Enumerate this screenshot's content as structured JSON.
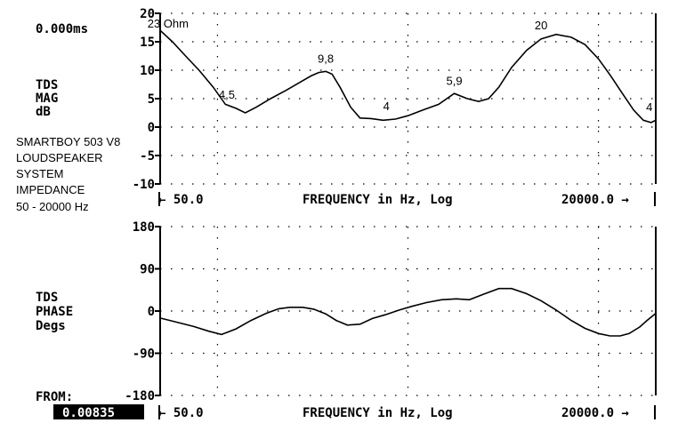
{
  "header": {
    "time_readout": "0.000ms"
  },
  "notes": [
    "SMARTBOY 503 V8",
    "LOUDSPEAKER",
    "SYSTEM",
    "IMPEDANCE",
    "50 - 20000 Hz"
  ],
  "footer": {
    "from_label": "FROM:",
    "from_value": "0.00835"
  },
  "chart_data": [
    {
      "type": "line",
      "ylabel": [
        "TDS",
        "MAG",
        "dB"
      ],
      "xlabel": "FREQUENCY in Hz, Log",
      "x_start_label": "← 50.0",
      "x_end_label": "20000.0 →",
      "xlim": [
        50,
        20000
      ],
      "x_scale": "log",
      "ylim": [
        -10,
        20
      ],
      "yticks": [
        "20",
        "15",
        "10",
        "5",
        "0",
        "-5",
        "-10"
      ],
      "grid": true,
      "line_color": "#000000",
      "x": [
        50,
        58,
        68,
        80,
        95,
        110,
        125,
        140,
        160,
        190,
        230,
        275,
        310,
        340,
        370,
        400,
        440,
        500,
        560,
        640,
        740,
        860,
        1000,
        1200,
        1450,
        1750,
        2050,
        2350,
        2650,
        3000,
        3500,
        4200,
        5000,
        6000,
        7200,
        8500,
        10000,
        11600,
        13300,
        15300,
        17200,
        18900,
        20000
      ],
      "values": [
        17,
        15,
        12.5,
        10,
        7,
        4,
        3.3,
        2.5,
        3.5,
        5,
        6.5,
        8,
        9,
        9.6,
        9.8,
        9.3,
        7,
        3.5,
        1.6,
        1.5,
        1.2,
        1.4,
        2,
        3,
        4,
        5.9,
        5,
        4.5,
        5,
        7,
        10.5,
        13.5,
        15.5,
        16.3,
        15.8,
        14.5,
        12,
        9,
        6,
        3,
        1.2,
        0.8,
        1.2
      ],
      "annotations": [
        {
          "text": "23 Ohm",
          "x": 55,
          "y": 17.5
        },
        {
          "text": "4,5",
          "x": 112,
          "y": 5
        },
        {
          "text": "9,8",
          "x": 370,
          "y": 11.3
        },
        {
          "text": "4",
          "x": 770,
          "y": 3
        },
        {
          "text": "5,9",
          "x": 1750,
          "y": 7.4
        },
        {
          "text": "20",
          "x": 5000,
          "y": 17.2
        },
        {
          "text": "4",
          "x": 18500,
          "y": 2.8
        }
      ]
    },
    {
      "type": "line",
      "ylabel": [
        "TDS",
        "PHASE",
        "Degs"
      ],
      "xlabel": "FREQUENCY in Hz, Log",
      "x_start_label": "← 50.0",
      "x_end_label": "20000.0 →",
      "xlim": [
        50,
        20000
      ],
      "x_scale": "log",
      "ylim": [
        -180,
        180
      ],
      "yticks": [
        "180",
        "90",
        "0",
        "-90",
        "-180"
      ],
      "grid": true,
      "line_color": "#000000",
      "x": [
        50,
        60,
        75,
        90,
        105,
        125,
        150,
        180,
        210,
        240,
        280,
        320,
        370,
        420,
        480,
        560,
        650,
        760,
        900,
        1050,
        1250,
        1500,
        1800,
        2100,
        2500,
        3000,
        3500,
        4200,
        5000,
        6000,
        7200,
        8500,
        10000,
        11500,
        13000,
        14500,
        16500,
        18000,
        20000
      ],
      "values": [
        -15,
        -23,
        -33,
        -43,
        -50,
        -38,
        -20,
        -5,
        5,
        8,
        8,
        4,
        -6,
        -20,
        -30,
        -28,
        -16,
        -8,
        2,
        10,
        18,
        24,
        26,
        24,
        36,
        48,
        48,
        37,
        22,
        2,
        -20,
        -37,
        -48,
        -53,
        -53,
        -48,
        -34,
        -20,
        -5
      ]
    }
  ]
}
